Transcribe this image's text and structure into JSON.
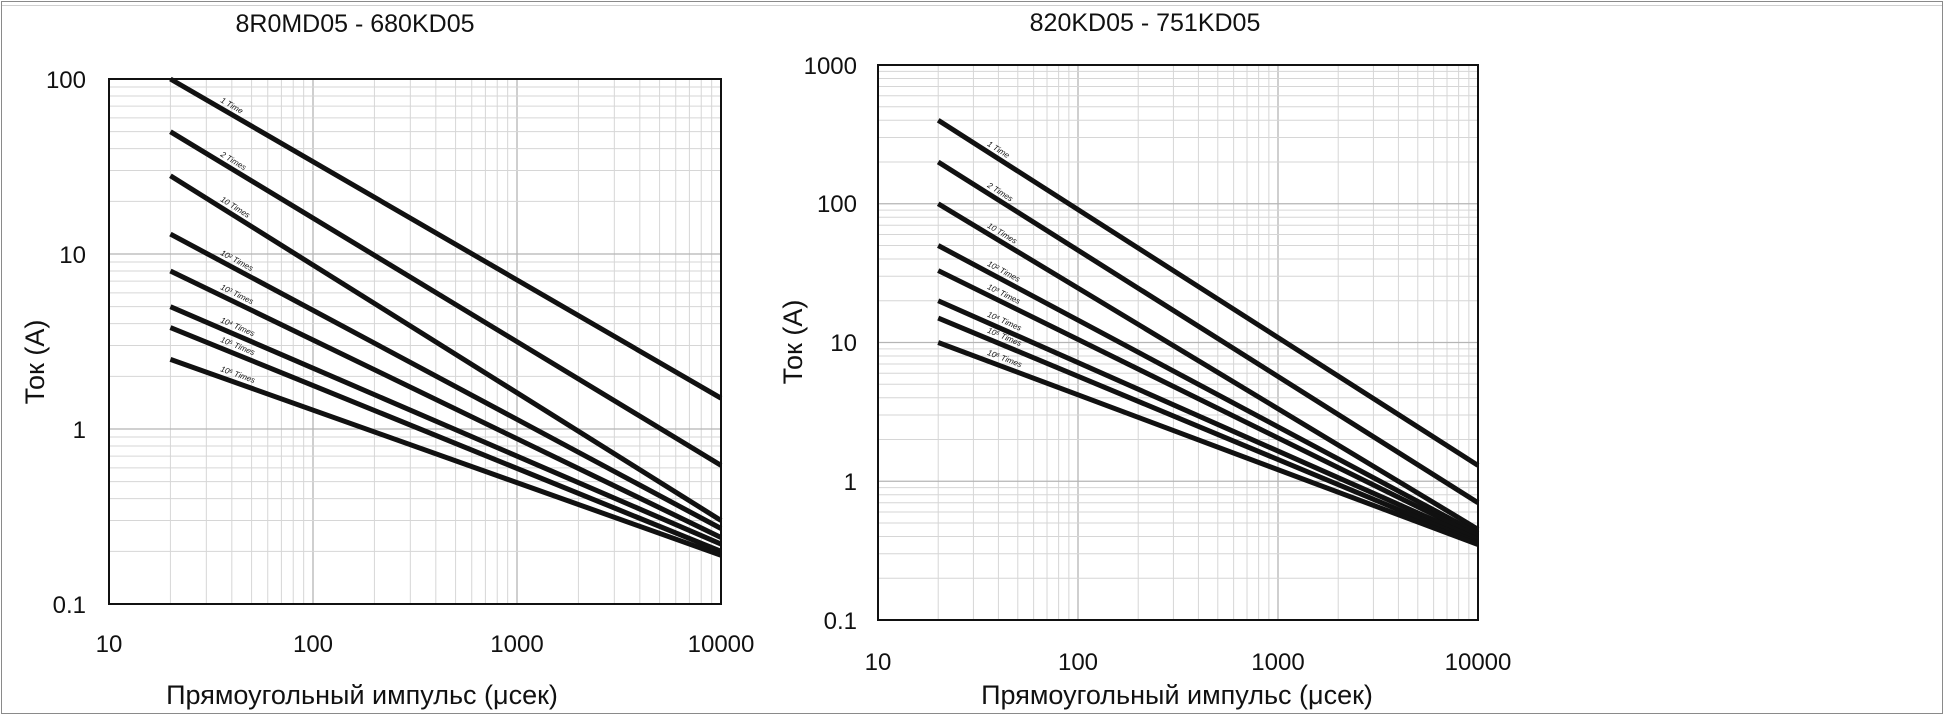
{
  "chart_data": [
    {
      "type": "line",
      "title": "8R0MD05 - 680KD05",
      "xlabel": "Прямоугольный импульс (μсек)",
      "ylabel": "Ток (A)",
      "x_scale": "log",
      "y_scale": "log",
      "xlim": [
        10,
        10000
      ],
      "ylim": [
        0.1,
        100
      ],
      "grid": true,
      "x_tick_labels": [
        "10",
        "100",
        "1000",
        "10000"
      ],
      "y_tick_labels": [
        "0.1",
        "1",
        "10",
        "100"
      ],
      "series": [
        {
          "name": "1 Time",
          "x": [
            20,
            10000
          ],
          "y": [
            100,
            1.5
          ]
        },
        {
          "name": "2 Times",
          "x": [
            20,
            10000
          ],
          "y": [
            50,
            0.62
          ]
        },
        {
          "name": "10 Times",
          "x": [
            20,
            10000
          ],
          "y": [
            28,
            0.3
          ]
        },
        {
          "name": "10² Times",
          "x": [
            20,
            10000
          ],
          "y": [
            13,
            0.27
          ]
        },
        {
          "name": "10³ Times",
          "x": [
            20,
            10000
          ],
          "y": [
            8,
            0.24
          ]
        },
        {
          "name": "10⁴ Times",
          "x": [
            20,
            10000
          ],
          "y": [
            5,
            0.22
          ]
        },
        {
          "name": "10⁵ Times",
          "x": [
            20,
            10000
          ],
          "y": [
            3.8,
            0.2
          ]
        },
        {
          "name": "10⁶ Times",
          "x": [
            20,
            10000
          ],
          "y": [
            2.5,
            0.19
          ]
        }
      ]
    },
    {
      "type": "line",
      "title": "820KD05 - 751KD05",
      "xlabel": "Прямоугольный импульс (μсек)",
      "ylabel": "Ток (A)",
      "x_scale": "log",
      "y_scale": "log",
      "xlim": [
        10,
        10000
      ],
      "ylim": [
        0.1,
        1000
      ],
      "grid": true,
      "x_tick_labels": [
        "10",
        "100",
        "1000",
        "10000"
      ],
      "y_tick_labels": [
        "0.1",
        "1",
        "10",
        "100",
        "1000"
      ],
      "series": [
        {
          "name": "1 Time",
          "x": [
            20,
            10000
          ],
          "y": [
            400,
            1.3
          ]
        },
        {
          "name": "2 Times",
          "x": [
            20,
            10000
          ],
          "y": [
            200,
            0.7
          ]
        },
        {
          "name": "10 Times",
          "x": [
            20,
            10000
          ],
          "y": [
            100,
            0.45
          ]
        },
        {
          "name": "10² Times",
          "x": [
            20,
            10000
          ],
          "y": [
            50,
            0.42
          ]
        },
        {
          "name": "10³ Times",
          "x": [
            20,
            10000
          ],
          "y": [
            33,
            0.4
          ]
        },
        {
          "name": "10⁴ Times",
          "x": [
            20,
            10000
          ],
          "y": [
            20,
            0.38
          ]
        },
        {
          "name": "10⁵ Times",
          "x": [
            20,
            10000
          ],
          "y": [
            15,
            0.36
          ]
        },
        {
          "name": "10⁶ Times",
          "x": [
            20,
            10000
          ],
          "y": [
            10,
            0.35
          ]
        }
      ]
    }
  ]
}
